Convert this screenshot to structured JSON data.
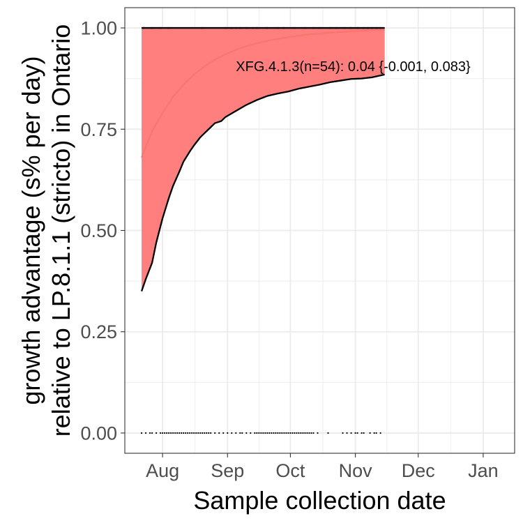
{
  "chart_data": {
    "type": "line",
    "xlabel": "Sample collection date",
    "ylabel_lines": [
      "growth advantage (s% per day)",
      "relative to LP.8.1.1 (stricto) in Ontario"
    ],
    "x_tick_labels": [
      "Aug",
      "Sep",
      "Oct",
      "Nov",
      "Dec",
      "Jan"
    ],
    "x_tick_days": [
      0,
      31,
      61,
      92,
      122,
      153
    ],
    "xlim_days": [
      -18,
      168
    ],
    "y_tick_labels": [
      "0.00",
      "0.25",
      "0.50",
      "0.75",
      "1.00"
    ],
    "y_ticks": [
      0,
      0.25,
      0.5,
      0.75,
      1.0
    ],
    "ylim": [
      -0.05,
      1.05
    ],
    "grid": true,
    "annotation": "XFG.4.1.3(n=54): 0.04 {-0.001, 0.083}",
    "colors": {
      "fit": "#f8766d",
      "ribbon": "#ff7f7f",
      "bound": "#000000",
      "points": "#000000",
      "panel_border": "#333333",
      "grid": "#ebebeb"
    },
    "series": [
      {
        "role": "fitted",
        "x": [
          -10,
          -5,
          0,
          5,
          10,
          15,
          20,
          25,
          30,
          35,
          40,
          45,
          50,
          55,
          60,
          65,
          70,
          75,
          80,
          85,
          90,
          95,
          100,
          105,
          106
        ],
        "y": [
          0.68,
          0.745,
          0.79,
          0.83,
          0.86,
          0.885,
          0.905,
          0.922,
          0.935,
          0.946,
          0.955,
          0.962,
          0.968,
          0.973,
          0.977,
          0.981,
          0.984,
          0.986,
          0.988,
          0.99,
          0.992,
          0.993,
          0.994,
          0.995,
          0.995
        ]
      },
      {
        "role": "lower-bound",
        "x": [
          -10,
          -8,
          -5,
          -3,
          0,
          3,
          5,
          8,
          10,
          13,
          15,
          18,
          20,
          23,
          25,
          28,
          30,
          35,
          40,
          45,
          50,
          55,
          60,
          65,
          70,
          75,
          80,
          85,
          90,
          95,
          100,
          106
        ],
        "y": [
          0.35,
          0.38,
          0.42,
          0.47,
          0.53,
          0.58,
          0.61,
          0.645,
          0.67,
          0.695,
          0.71,
          0.73,
          0.74,
          0.755,
          0.765,
          0.77,
          0.78,
          0.795,
          0.81,
          0.822,
          0.832,
          0.838,
          0.843,
          0.85,
          0.855,
          0.86,
          0.866,
          0.87,
          0.874,
          0.875,
          0.878,
          0.885
        ]
      },
      {
        "role": "upper-bound",
        "x": [
          -10,
          106
        ],
        "y": [
          1.0,
          1.0
        ]
      }
    ],
    "observations": {
      "y1_x": [
        -9,
        -5,
        -1,
        3,
        19,
        30,
        33,
        35,
        37,
        40,
        43,
        45,
        50,
        55,
        58,
        63,
        68,
        72,
        75,
        80,
        83,
        87,
        90,
        93,
        96,
        98,
        100,
        102,
        104
      ],
      "y0_x": [
        -10,
        -8,
        -6,
        -5,
        -3,
        -1,
        0,
        1,
        2,
        3,
        4,
        5,
        6,
        7,
        8,
        9,
        10,
        11,
        12,
        13,
        14,
        15,
        16,
        17,
        18,
        19,
        20,
        21,
        22,
        23,
        25,
        27,
        29,
        31,
        33,
        35,
        37,
        38,
        40,
        42,
        44,
        45,
        46,
        47,
        48,
        49,
        50,
        51,
        52,
        53,
        54,
        55,
        56,
        57,
        58,
        59,
        60,
        61,
        62,
        63,
        64,
        65,
        66,
        67,
        68,
        69,
        70,
        71,
        72,
        74,
        79,
        86,
        88,
        90,
        92,
        93,
        95,
        96,
        99,
        101,
        102,
        104
      ]
    }
  }
}
